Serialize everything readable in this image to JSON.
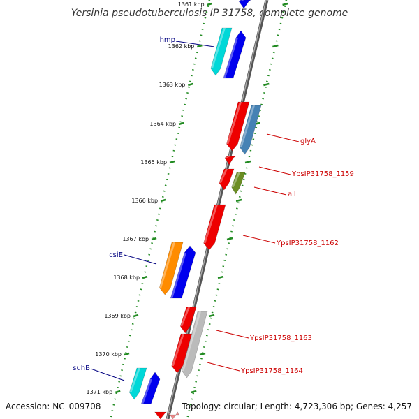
{
  "title": "Yersinia pseudotuberculosis IP 31758, complete genome",
  "footer": {
    "accession": "Accession: NC_009708",
    "topology": "Topology: circular; Length: 4,723,306 bp; Genes: 4,257"
  },
  "ticks": [
    {
      "label": "1361 kbp"
    },
    {
      "label": "1362 kbp"
    },
    {
      "label": "1363 kbp"
    },
    {
      "label": "1364 kbp"
    },
    {
      "label": "1365 kbp"
    },
    {
      "label": "1366 kbp"
    },
    {
      "label": "1367 kbp"
    },
    {
      "label": "1368 kbp"
    },
    {
      "label": "1369 kbp"
    },
    {
      "label": "1370 kbp"
    },
    {
      "label": "1371 kbp"
    }
  ],
  "gene_labels": [
    {
      "text": "hmp",
      "color": "#000080"
    },
    {
      "text": "glyA",
      "color": "#cc0000"
    },
    {
      "text": "YpsIP31758_1159",
      "color": "#cc0000"
    },
    {
      "text": "ail",
      "color": "#cc0000"
    },
    {
      "text": "YpsIP31758_1162",
      "color": "#cc0000"
    },
    {
      "text": "csiE",
      "color": "#000080"
    },
    {
      "text": "YpsIP31758_1163",
      "color": "#cc0000"
    },
    {
      "text": "YpsIP31758_1164",
      "color": "#cc0000"
    },
    {
      "text": "suhB",
      "color": "#000080"
    }
  ],
  "colors": {
    "backbone": "#888888",
    "tick": "#228b22",
    "blue": "#0000ee",
    "cyan": "#00d8d8",
    "red": "#ee0000",
    "steelblue": "#4682b4",
    "olive": "#6b8e23",
    "orange": "#ff8c00",
    "grey": "#bbbbbb"
  }
}
